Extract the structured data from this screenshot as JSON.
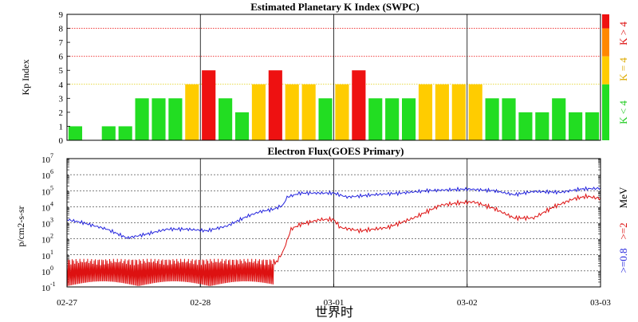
{
  "chart_data": [
    {
      "type": "bar",
      "title": "Estimated Planetary K Index (SWPC)",
      "ylabel": "Kp Index",
      "ylim": [
        0,
        9
      ],
      "yticks": [
        "0",
        "1",
        "2",
        "3",
        "4",
        "5",
        "6",
        "7",
        "8",
        "9"
      ],
      "reference_lines": [
        4,
        6,
        8
      ],
      "values": [
        1,
        0,
        1,
        1,
        3,
        3,
        3,
        4,
        5,
        3,
        2,
        4,
        5,
        4,
        4,
        3,
        4,
        5,
        3,
        3,
        3,
        4,
        4,
        4,
        4,
        3,
        3,
        2,
        2,
        3,
        2,
        2
      ],
      "colors": {
        "low": "#22dd22",
        "mid": "#ffcc00",
        "high": "#ee1111",
        "mid_bar_edge": "#ff9900"
      },
      "legend": {
        "low": "K < 4",
        "mid": "K = 4",
        "high": "K > 4"
      },
      "legend_colors": {
        "low": "#22cc22",
        "mid": "#ddaa00",
        "high": "#dd1111"
      },
      "scale_bar": [
        {
          "from": 0,
          "to": 4,
          "color": "#22dd22"
        },
        {
          "from": 4,
          "to": 6,
          "color": "#ffcc00"
        },
        {
          "from": 6,
          "to": 8,
          "color": "#ff8800"
        },
        {
          "from": 8,
          "to": 9,
          "color": "#ee1111"
        }
      ]
    },
    {
      "type": "line",
      "title": "Electron Flux(GOES Primary)",
      "ylabel": "p/cm2-s-sr",
      "yscale": "log",
      "ylim": [
        0.1,
        10000000
      ],
      "yticks": [
        {
          "base": "10",
          "exp": "7"
        },
        {
          "base": "10",
          "exp": "6"
        },
        {
          "base": "10",
          "exp": "5"
        },
        {
          "base": "10",
          "exp": "4"
        },
        {
          "base": "10",
          "exp": "3"
        },
        {
          "base": "10",
          "exp": "2"
        },
        {
          "base": "10",
          "exp": "1"
        },
        {
          "base": "10",
          "exp": "0"
        },
        {
          "base": "10",
          "exp": "-1"
        }
      ],
      "x_ticks": [
        "02-27",
        "02-28",
        "03-01",
        "03-02",
        "03-03"
      ],
      "xlabel": "世界时",
      "series": [
        {
          "name": ">=0.8",
          "color": "#2222dd"
        },
        {
          "name": ">=2",
          "color": "#dd1111"
        }
      ],
      "right_label": {
        "blue": ">=0.8",
        "red": ">=2",
        "unit": "MeV"
      }
    }
  ]
}
